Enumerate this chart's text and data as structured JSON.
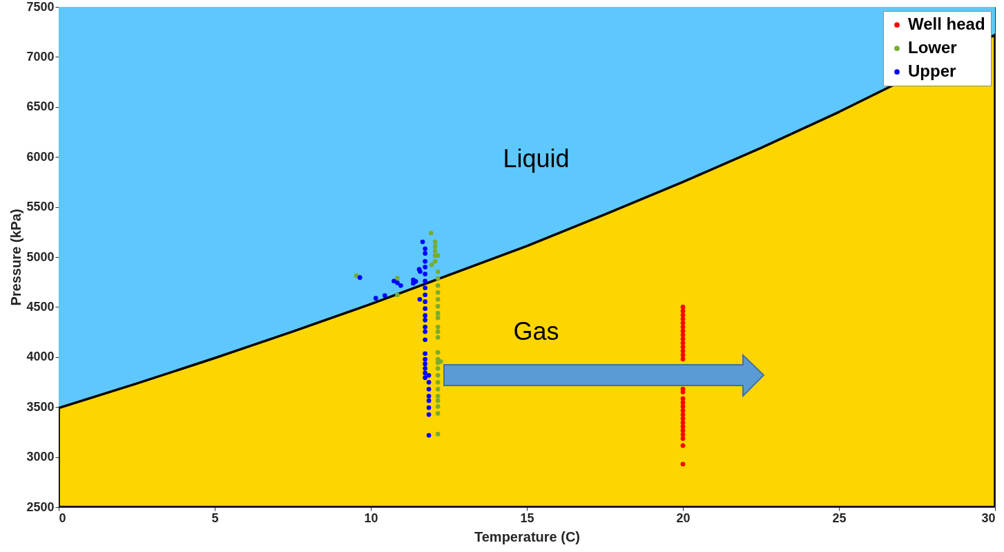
{
  "chart_data": {
    "type": "scatter",
    "xlabel": "Temperature (C)",
    "ylabel": "Pressure (kPa)",
    "xlim": [
      0,
      30
    ],
    "ylim": [
      2500,
      7500
    ],
    "xticks": [
      0,
      5,
      10,
      15,
      20,
      25,
      30
    ],
    "yticks": [
      2500,
      3000,
      3500,
      4000,
      4500,
      5000,
      5500,
      6000,
      6500,
      7000,
      7500
    ],
    "grid": false,
    "legend": "top right",
    "marker": "circle",
    "bands": [
      {
        "axis": "y",
        "from": 2500,
        "to": 7500,
        "color": "#5ec8fe"
      }
    ],
    "annotations": [
      "Liquid",
      "Gas"
    ],
    "series": [
      {
        "type": "area",
        "marker": "none",
        "color": "#fdd500",
        "x": [
          0,
          2.5,
          5,
          7.5,
          10,
          12.5,
          15,
          17.5,
          20,
          22.5,
          25,
          30
        ],
        "values": [
          3490,
          3735,
          3990,
          4255,
          4530,
          4820,
          5110,
          5425,
          5750,
          6090,
          6450,
          7220
        ]
      },
      {
        "name": "Well head",
        "color": "#ff0000",
        "x": [
          20,
          20,
          20,
          20,
          20,
          20,
          20,
          20,
          20,
          20,
          20,
          20,
          20,
          20,
          20,
          20,
          20,
          20,
          20,
          20,
          20,
          20,
          20,
          20,
          20,
          20,
          20,
          20,
          20
        ],
        "values": [
          4500,
          4460,
          4420,
          4380,
          4340,
          4300,
          4260,
          4220,
          4180,
          4140,
          4100,
          4060,
          4020,
          3980,
          3680,
          3650,
          3585,
          3545,
          3505,
          3465,
          3425,
          3385,
          3345,
          3305,
          3265,
          3225,
          3185,
          3115,
          2930
        ]
      },
      {
        "name": "Lower",
        "color": "#77ac30",
        "x": [
          9.54,
          10.85,
          10.85,
          11.93,
          12.06,
          12.06,
          12.06,
          12.06,
          12.06,
          12.15,
          11.95,
          12.15,
          12.15,
          12.15,
          12.15,
          12.15,
          12.15,
          12.15,
          12.15,
          12.15,
          12.15,
          12.15,
          12.15,
          12.15,
          12.15,
          12.15,
          12.15,
          12.15,
          12.15,
          12.15,
          12.15,
          12.15,
          12.15,
          12.15,
          12.24
        ],
        "values": [
          4814,
          4788,
          4622,
          5240,
          5152,
          5106,
          5060,
          5014,
          4956,
          5014,
          4922,
          4853,
          4784,
          4715,
          4646,
          4577,
          4508,
          4438,
          4392,
          4300,
          4254,
          4197,
          4047,
          3978,
          3943,
          3886,
          3817,
          3748,
          3679,
          3610,
          3564,
          3506,
          3437,
          3230,
          3955
        ]
      },
      {
        "name": "Upper",
        "color": "#0000ff",
        "x": [
          9.65,
          10.16,
          10.45,
          10.74,
          10.85,
          10.96,
          11.36,
          11.44,
          11.36,
          11.55,
          11.58,
          11.57,
          11.66,
          11.74,
          11.74,
          11.74,
          11.74,
          11.74,
          11.74,
          11.74,
          11.74,
          11.74,
          11.74,
          11.74,
          11.74,
          11.74,
          11.74,
          11.74,
          11.74,
          11.74,
          11.74,
          11.74,
          11.74,
          11.74,
          11.86,
          11.86,
          11.86,
          11.86,
          11.86,
          11.86,
          11.86,
          11.86
        ],
        "values": [
          4795,
          4588,
          4615,
          4760,
          4742,
          4715,
          4772,
          4756,
          4738,
          4876,
          4855,
          4577,
          5152,
          5083,
          5037,
          4956,
          4899,
          4830,
          4760,
          4691,
          4622,
          4553,
          4484,
          4415,
          4369,
          4300,
          4254,
          4173,
          4035,
          3978,
          3932,
          3886,
          3840,
          3794,
          3817,
          3748,
          3679,
          3610,
          3564,
          3494,
          3425,
          3218
        ]
      }
    ]
  }
}
